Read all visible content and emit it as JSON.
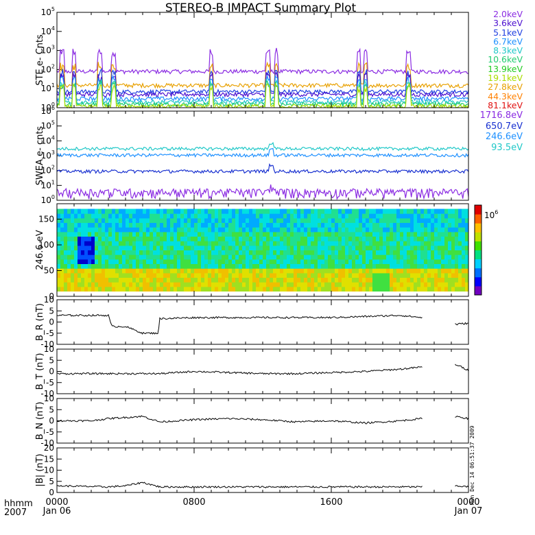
{
  "title": "STEREO-B IMPACT Summary Plot",
  "corner": {
    "line1": "hhmm",
    "line2": "2007"
  },
  "stamp": "Mon Dec 14 06:51:37 2009",
  "time_ticks": [
    {
      "time": "0000",
      "date": "Jan 06",
      "hour": 0
    },
    {
      "time": "0800",
      "date": "",
      "hour": 8
    },
    {
      "time": "1600",
      "date": "",
      "hour": 16
    },
    {
      "time": "0000",
      "date": "Jan 07",
      "hour": 24
    }
  ],
  "legend_ste": [
    {
      "label": "2.0keV",
      "color": "#8a2be2"
    },
    {
      "label": "3.6keV",
      "color": "#4b0fcf"
    },
    {
      "label": "5.1keV",
      "color": "#1f3fe0"
    },
    {
      "label": "6.7keV",
      "color": "#1e90ff"
    },
    {
      "label": "8.3keV",
      "color": "#20c8c8"
    },
    {
      "label": "10.6keV",
      "color": "#20cc70"
    },
    {
      "label": "13.9keV",
      "color": "#22cc22"
    },
    {
      "label": "19.1keV",
      "color": "#aadd00"
    },
    {
      "label": "27.8keV",
      "color": "#e8a000"
    },
    {
      "label": "44.3keV",
      "color": "#ff8000"
    },
    {
      "label": "81.1keV",
      "color": "#e01010"
    }
  ],
  "legend_swea": [
    {
      "label": "1716.8eV",
      "color": "#8a2be2"
    },
    {
      "label": "650.7eV",
      "color": "#1830d0"
    },
    {
      "label": "246.6eV",
      "color": "#1e90ff"
    },
    {
      "label": "93.5eV",
      "color": "#20c8c8"
    }
  ],
  "chart_data": [
    {
      "type": "line",
      "ylabel": "STE e- Cnts",
      "yscale": "log",
      "ylim": [
        1,
        100000
      ],
      "yticks": [
        "10^0",
        "10^1",
        "10^2",
        "10^3",
        "10^4",
        "10^5"
      ],
      "x_units": "hours from 2007-01-06 00:00",
      "series": [
        {
          "name": "2.0keV",
          "base": 80
        },
        {
          "name": "27.8keV",
          "base": 15
        },
        {
          "name": "5.1keV",
          "base": 7
        },
        {
          "name": "3.6keV",
          "base": 5
        },
        {
          "name": "6.7keV",
          "base": 3
        },
        {
          "name": "8.3keV",
          "base": 2
        },
        {
          "name": "10.6keV",
          "base": 1.5
        },
        {
          "name": "19.1keV",
          "base": 1.2
        }
      ],
      "spikes_hours": [
        0.3,
        1.0,
        2.5,
        3.3,
        9.0,
        12.3,
        12.8,
        17.6,
        18.0,
        20.5
      ]
    },
    {
      "type": "line",
      "ylabel": "SWEA e- cnts",
      "yscale": "log",
      "ylim": [
        1,
        1000000
      ],
      "yticks": [
        "10^0",
        "10^1",
        "10^2",
        "10^3",
        "10^4",
        "10^5",
        "10^6"
      ],
      "series": [
        {
          "name": "93.5eV",
          "base": 3000
        },
        {
          "name": "246.6eV",
          "base": 1100
        },
        {
          "name": "650.7eV",
          "base": 90
        },
        {
          "name": "1716.8eV",
          "base": 3
        }
      ]
    },
    {
      "type": "heatmap",
      "ylabel": "246.6 eV",
      "ylim": [
        0,
        180
      ],
      "yticks": [
        0,
        50,
        100,
        150
      ],
      "colorbar_label": "10^6"
    },
    {
      "type": "line",
      "ylabel": "B_R (nT)",
      "ylim": [
        -10,
        10
      ],
      "yticks": [
        -10,
        -5,
        0,
        5,
        10
      ],
      "x": [
        0,
        3,
        3.2,
        4,
        5,
        5.9,
        6,
        8,
        12,
        16,
        20,
        21.3,
        23.3,
        24
      ],
      "y": [
        3,
        3,
        -2,
        -2,
        -5,
        -5,
        1.5,
        2,
        2,
        2,
        3,
        2,
        -1,
        -0.5
      ],
      "gaps": [
        [
          21.3,
          23.2
        ]
      ]
    },
    {
      "type": "line",
      "ylabel": "B_T (nT)",
      "ylim": [
        -10,
        10
      ],
      "yticks": [
        -10,
        -5,
        0,
        5,
        10
      ],
      "x": [
        0,
        2,
        4,
        6,
        8,
        10,
        12,
        14,
        16,
        18,
        20,
        21.3,
        23.3,
        24
      ],
      "y": [
        -1,
        -1,
        -1,
        -1,
        0,
        -0.5,
        -1,
        -1,
        -0.5,
        0,
        1,
        2,
        3,
        0.5
      ],
      "gaps": [
        [
          21.3,
          23.2
        ]
      ]
    },
    {
      "type": "line",
      "ylabel": "B_N (nT)",
      "ylim": [
        -10,
        10
      ],
      "yticks": [
        -10,
        -5,
        0,
        5,
        10
      ],
      "x": [
        0,
        2,
        3,
        5,
        6,
        8,
        10,
        12,
        14,
        16,
        18,
        20,
        21.3,
        23.3,
        24
      ],
      "y": [
        0,
        0,
        1,
        2,
        -0.5,
        0.5,
        1,
        0.5,
        -0.5,
        0,
        -1,
        0,
        1,
        2,
        1
      ],
      "gaps": [
        [
          21.3,
          23.2
        ]
      ]
    },
    {
      "type": "line",
      "ylabel": "|B| (nT)",
      "ylim": [
        0,
        20
      ],
      "yticks": [
        0,
        5,
        10,
        15,
        20
      ],
      "x": [
        0,
        3,
        4,
        5,
        6,
        8,
        12,
        16,
        20,
        21.3,
        23.3,
        24
      ],
      "y": [
        3,
        2.5,
        3,
        4.5,
        2.5,
        2.5,
        2.5,
        2.5,
        2.5,
        2.5,
        3,
        2.5
      ],
      "gaps": [
        [
          21.3,
          23.2
        ]
      ]
    }
  ]
}
